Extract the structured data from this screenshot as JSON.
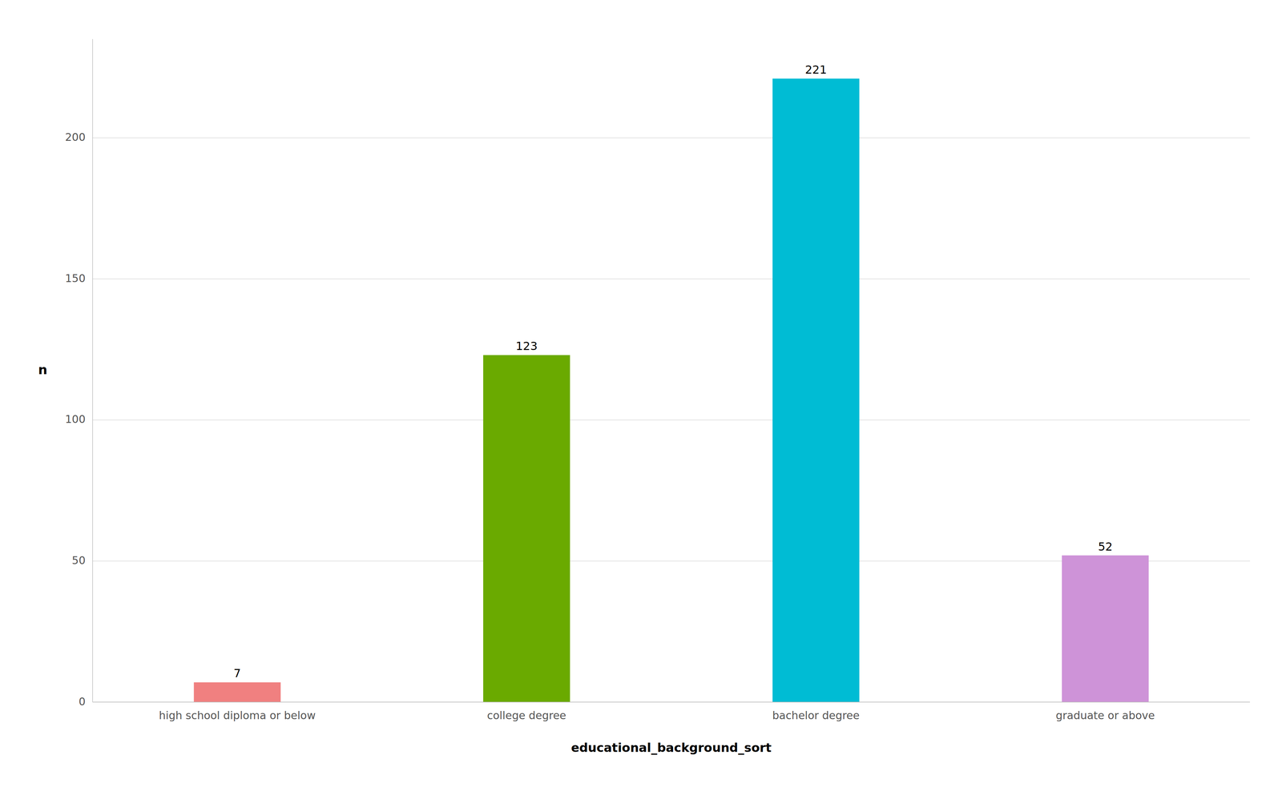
{
  "chart_data": {
    "type": "bar",
    "categories": [
      "high school diploma or below",
      "college degree",
      "bachelor degree",
      "graduate or above"
    ],
    "values": [
      7,
      123,
      221,
      52
    ],
    "colors": [
      "#f08080",
      "#6aaa00",
      "#00bcd4",
      "#ce93d8"
    ],
    "xlabel": "educational_background_sort",
    "ylabel": "n",
    "ylim": [
      0,
      235
    ],
    "yticks": [
      0,
      50,
      100,
      150,
      200
    ],
    "grid": true,
    "data_labels": true
  }
}
